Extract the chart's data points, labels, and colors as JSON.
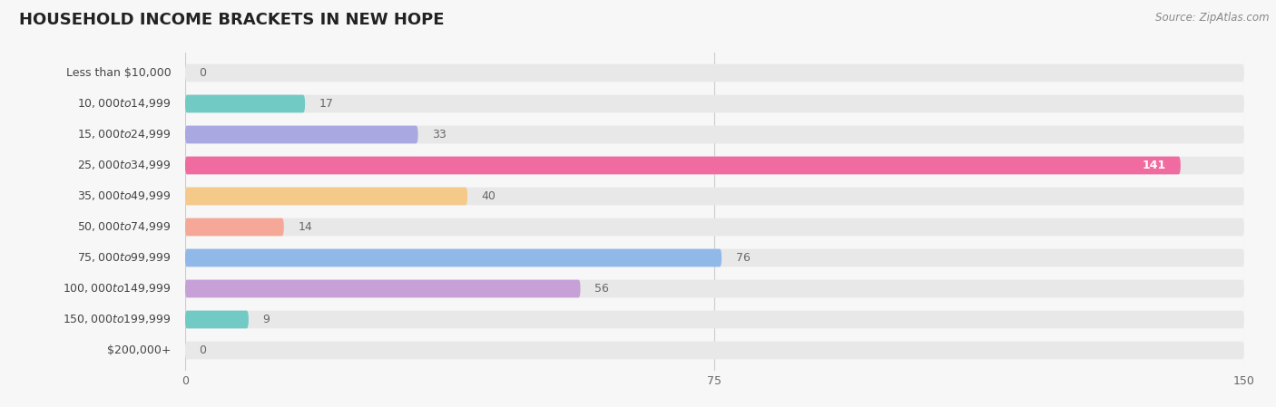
{
  "title": "HOUSEHOLD INCOME BRACKETS IN NEW HOPE",
  "source": "Source: ZipAtlas.com",
  "categories": [
    "Less than $10,000",
    "$10,000 to $14,999",
    "$15,000 to $24,999",
    "$25,000 to $34,999",
    "$35,000 to $49,999",
    "$50,000 to $74,999",
    "$75,000 to $99,999",
    "$100,000 to $149,999",
    "$150,000 to $199,999",
    "$200,000+"
  ],
  "values": [
    0,
    17,
    33,
    141,
    40,
    14,
    76,
    56,
    9,
    0
  ],
  "bar_colors": [
    "#c9a8d4",
    "#72cac4",
    "#a9a8e0",
    "#f06ba0",
    "#f5c98a",
    "#f5a898",
    "#90b8e8",
    "#c8a0d8",
    "#72cac4",
    "#b0b0e8"
  ],
  "background_color": "#f7f7f7",
  "bar_bg_color": "#e8e8e8",
  "xlim": [
    0,
    150
  ],
  "xticks": [
    0,
    75,
    150
  ],
  "title_fontsize": 13,
  "label_fontsize": 9,
  "value_fontsize": 9,
  "source_fontsize": 8.5
}
